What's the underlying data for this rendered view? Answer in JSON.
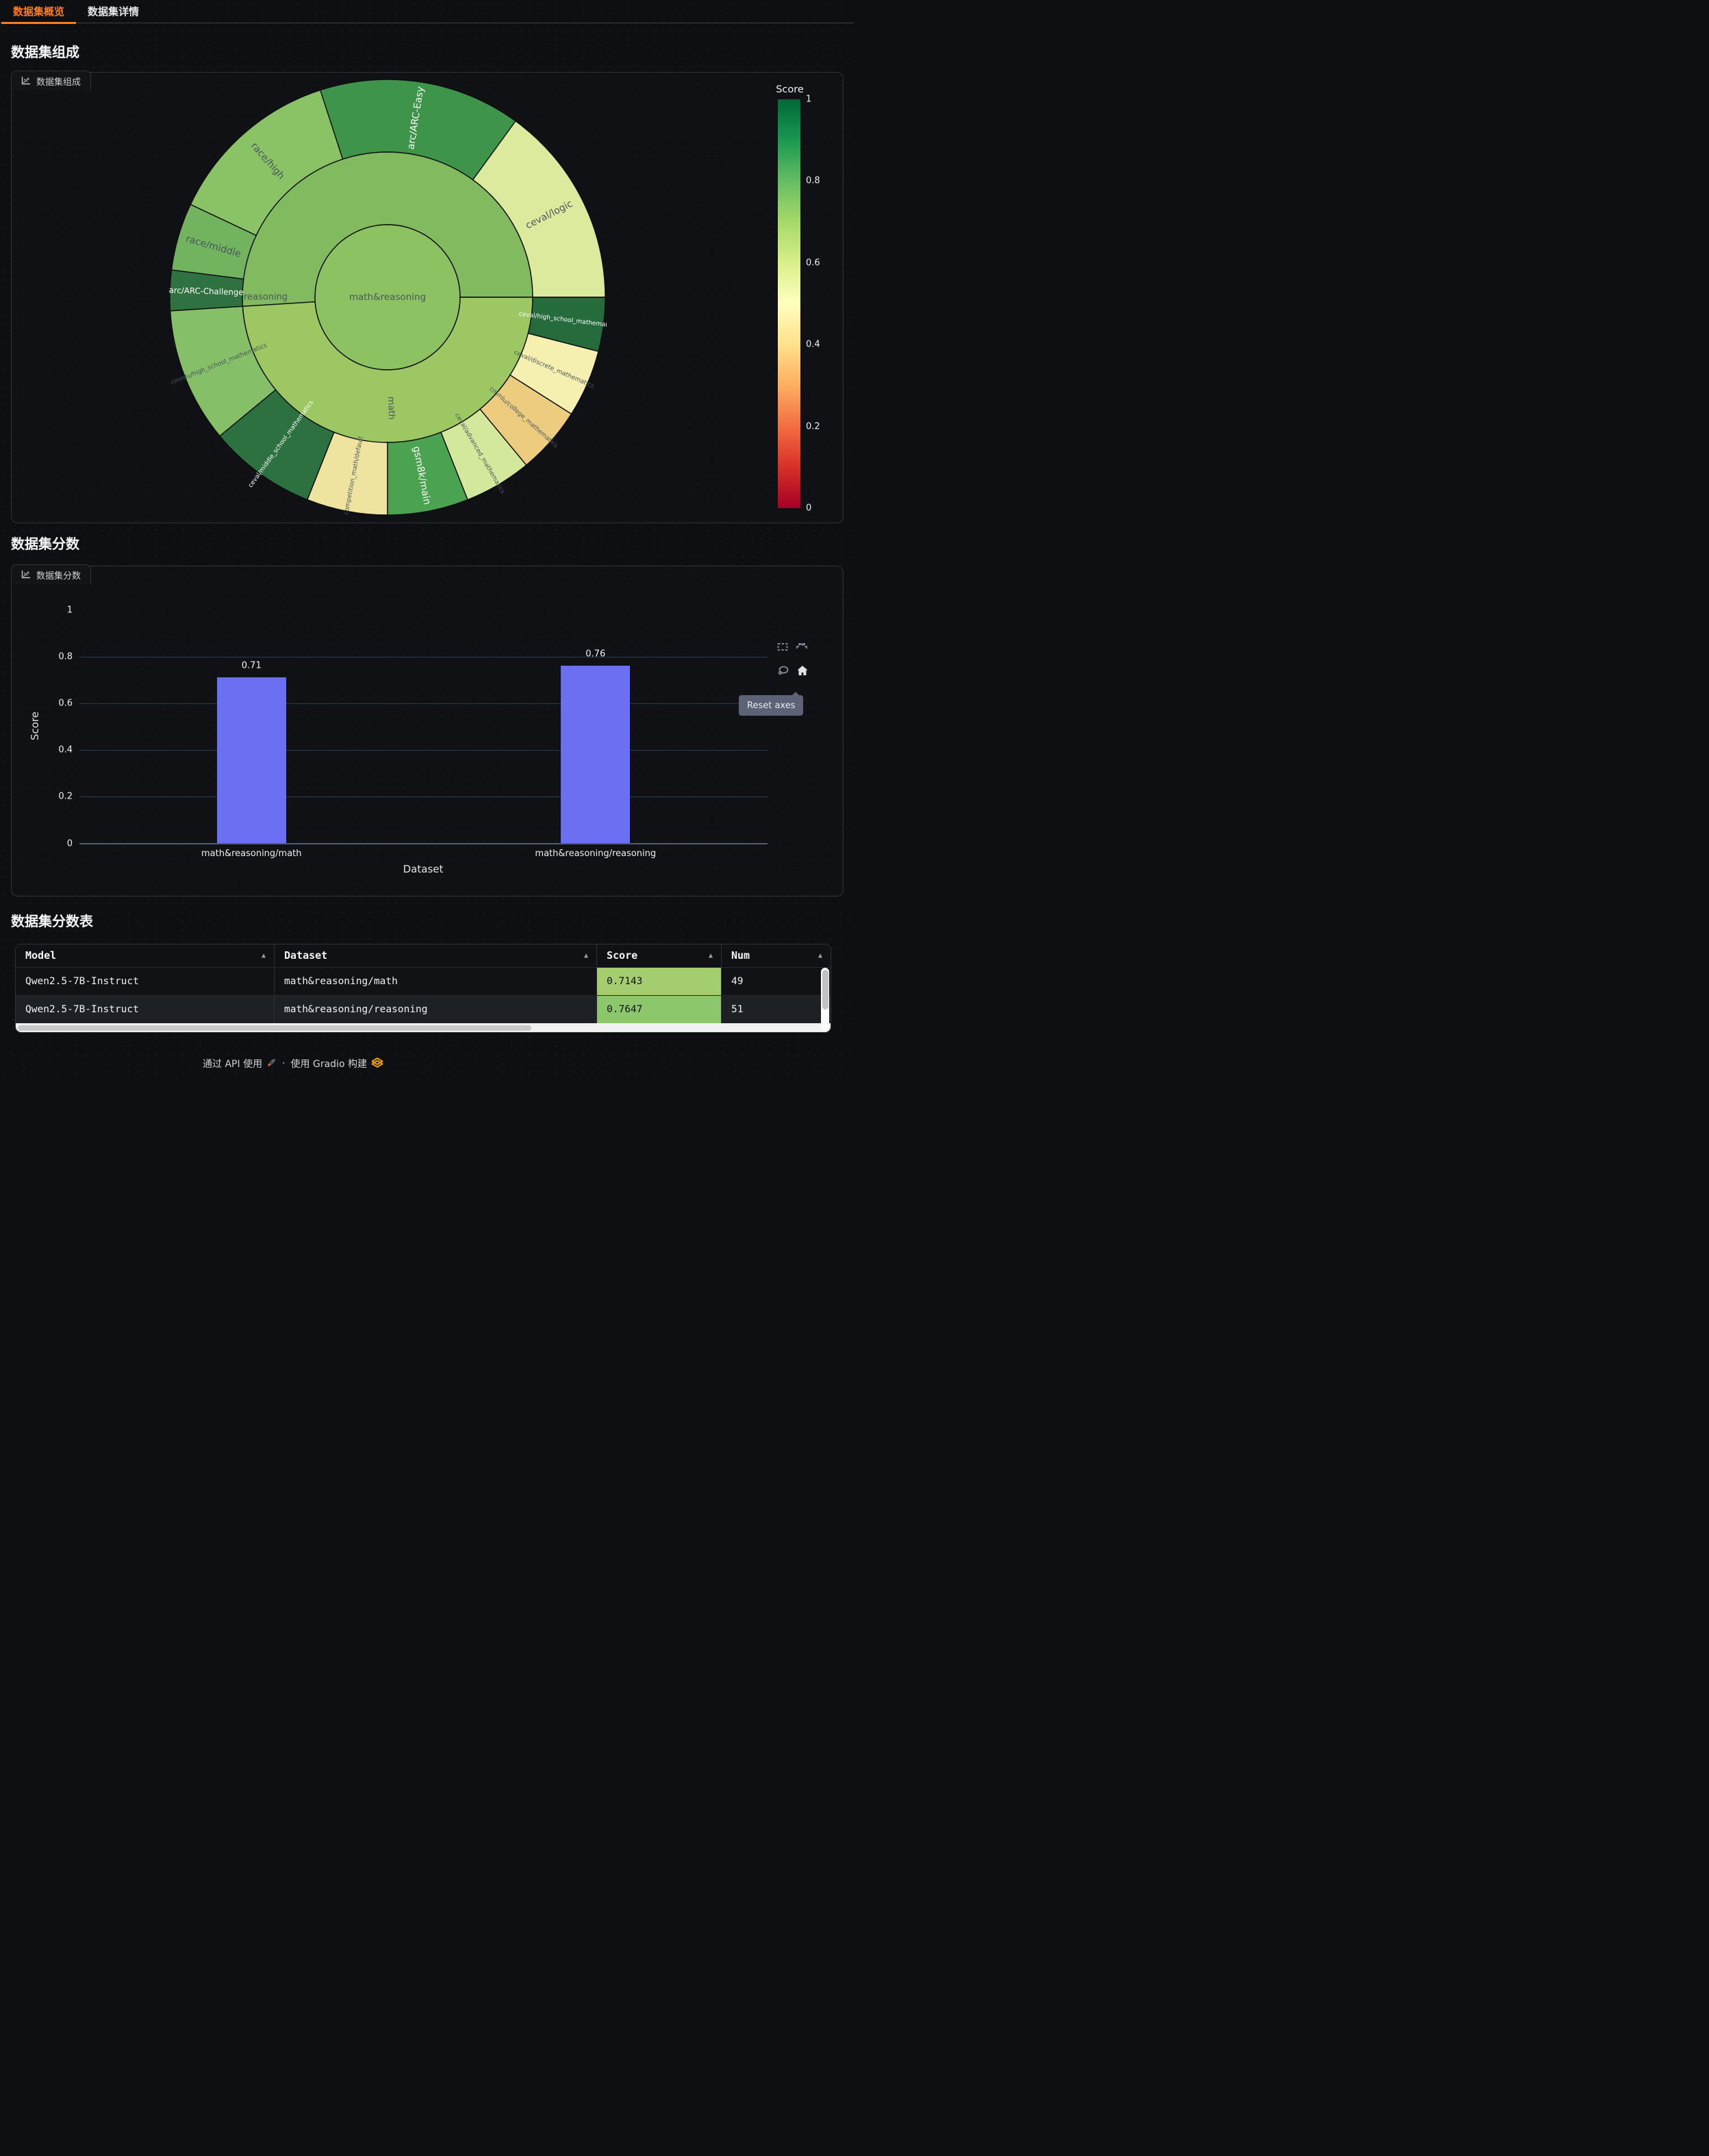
{
  "tabs": [
    {
      "label": "数据集概览",
      "active": true
    },
    {
      "label": "数据集详情",
      "active": false
    }
  ],
  "sections": {
    "composition": {
      "heading": "数据集组成",
      "panel_label": "数据集组成"
    },
    "scores": {
      "heading": "数据集分数",
      "panel_label": "数据集分数"
    },
    "score_table": {
      "heading": "数据集分数表"
    }
  },
  "colorbar": {
    "title": "Score",
    "ticks": [
      {
        "label": "1",
        "value": 1
      },
      {
        "label": "0.8",
        "value": 0.8
      },
      {
        "label": "0.6",
        "value": 0.6
      },
      {
        "label": "0.4",
        "value": 0.4
      },
      {
        "label": "0.2",
        "value": 0.2
      },
      {
        "label": "0",
        "value": 0
      }
    ],
    "gradient_top_to_bottom": [
      "#006837",
      "#1a9850",
      "#66bd63",
      "#a6d96a",
      "#d9ef8b",
      "#ffffbf",
      "#fee08b",
      "#fdae61",
      "#f46d43",
      "#d73027",
      "#a50026"
    ]
  },
  "chart_data": [
    {
      "type": "sunburst",
      "title": "数据集组成",
      "colorscale": "RdYlGn",
      "score_domain": [
        0,
        1
      ],
      "root": {
        "label": "math&reasoning",
        "score": 0.73,
        "color": "#8dc262"
      },
      "branches": [
        {
          "label": "reasoning",
          "value": 51,
          "score": 0.7647,
          "color": "#82ba60"
        },
        {
          "label": "math",
          "value": 49,
          "score": 0.7143,
          "color": "#9cc763"
        }
      ],
      "leaves": [
        {
          "parent": "reasoning",
          "label": "ceval/logic",
          "value": 15,
          "score": 0.6,
          "color": "#dcea9d",
          "text": "dark"
        },
        {
          "parent": "reasoning",
          "label": "arc/ARC-Easy",
          "value": 15,
          "score": 0.88,
          "color": "#3e9449",
          "text": "light"
        },
        {
          "parent": "reasoning",
          "label": "race/high",
          "value": 13,
          "score": 0.76,
          "color": "#8ac365",
          "text": "dark"
        },
        {
          "parent": "reasoning",
          "label": "race/middle",
          "value": 5,
          "score": 0.8,
          "color": "#72b45e",
          "text": "dark"
        },
        {
          "parent": "reasoning",
          "label": "arc/ARC-Challenge",
          "value": 3,
          "score": 0.93,
          "color": "#2f7240",
          "text": "light"
        },
        {
          "parent": "math",
          "label": "cmmlu/high_school_mathematics",
          "value": 10,
          "score": 0.77,
          "color": "#85bf68",
          "text": "dark"
        },
        {
          "parent": "math",
          "label": "ceval/middle_school_mathematics",
          "value": 8,
          "score": 0.93,
          "color": "#2d7140",
          "text": "light"
        },
        {
          "parent": "math",
          "label": "competition_math/default",
          "value": 6,
          "score": 0.47,
          "color": "#eee4a0",
          "text": "dark"
        },
        {
          "parent": "math",
          "label": "gsm8k/main",
          "value": 6,
          "score": 0.85,
          "color": "#4ba351",
          "text": "light"
        },
        {
          "parent": "math",
          "label": "ceval/advanced_mathematics",
          "value": 5,
          "score": 0.6,
          "color": "#d4e89c",
          "text": "dark"
        },
        {
          "parent": "math",
          "label": "cmmlu/college_mathematics",
          "value": 5,
          "score": 0.38,
          "color": "#eccc7e",
          "text": "dark"
        },
        {
          "parent": "math",
          "label": "ceval/discrete_mathematics",
          "value": 5,
          "score": 0.5,
          "color": "#f5f0b0",
          "text": "dark"
        },
        {
          "parent": "math",
          "label": "ceval/high_school_mathematics",
          "value": 4,
          "score": 0.95,
          "color": "#256b3c",
          "text": "light"
        }
      ]
    },
    {
      "type": "bar",
      "title": "数据集分数",
      "categories": [
        "math&reasoning/math",
        "math&reasoning/reasoning"
      ],
      "values": [
        0.71,
        0.76
      ],
      "bar_labels": [
        "0.71",
        "0.76"
      ],
      "xlabel": "Dataset",
      "ylabel": "Score",
      "ylim": [
        0,
        1
      ],
      "yticks": [
        0,
        0.2,
        0.4,
        0.6,
        0.8,
        1
      ],
      "grid": true,
      "bar_color": "#6b6ff2"
    }
  ],
  "modebar": {
    "icons": [
      "box-select",
      "autoscale",
      "lasso",
      "reset-axes"
    ],
    "tooltip": "Reset axes"
  },
  "table": {
    "columns": [
      {
        "label": "Model",
        "sort_icon": "▲"
      },
      {
        "label": "Dataset",
        "sort_icon": "▲"
      },
      {
        "label": "Score",
        "sort_icon": "▲"
      },
      {
        "label": "Num",
        "sort_icon": "▲"
      }
    ],
    "rows": [
      {
        "model": "Qwen2.5-7B-Instruct",
        "dataset": "math&reasoning/math",
        "score": "0.7143",
        "score_bg": "#a3cd6e",
        "num": "49"
      },
      {
        "model": "Qwen2.5-7B-Instruct",
        "dataset": "math&reasoning/reasoning",
        "score": "0.7647",
        "score_bg": "#8dc76b",
        "num": "51"
      }
    ]
  },
  "footer": {
    "use_api": "通过 API 使用",
    "separator": "·",
    "built_with": "使用 Gradio 构建"
  }
}
